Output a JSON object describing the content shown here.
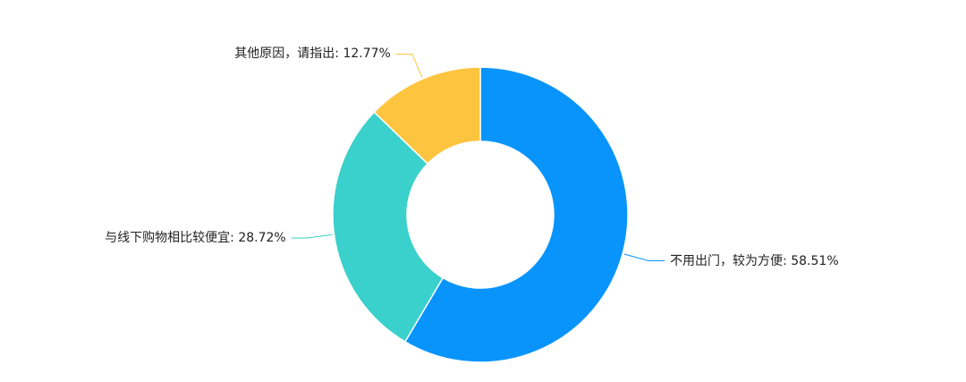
{
  "chart_data": {
    "type": "donut",
    "categories": [
      "不用出门，较为方便",
      "与线下购物相比较便宜",
      "其他原因，请指出"
    ],
    "values": [
      58.51,
      28.72,
      12.77
    ],
    "value_labels": [
      "58.51%",
      "28.72%",
      "12.77%"
    ],
    "colors": [
      "#0894fb",
      "#3ad0cb",
      "#fdc43f"
    ]
  }
}
